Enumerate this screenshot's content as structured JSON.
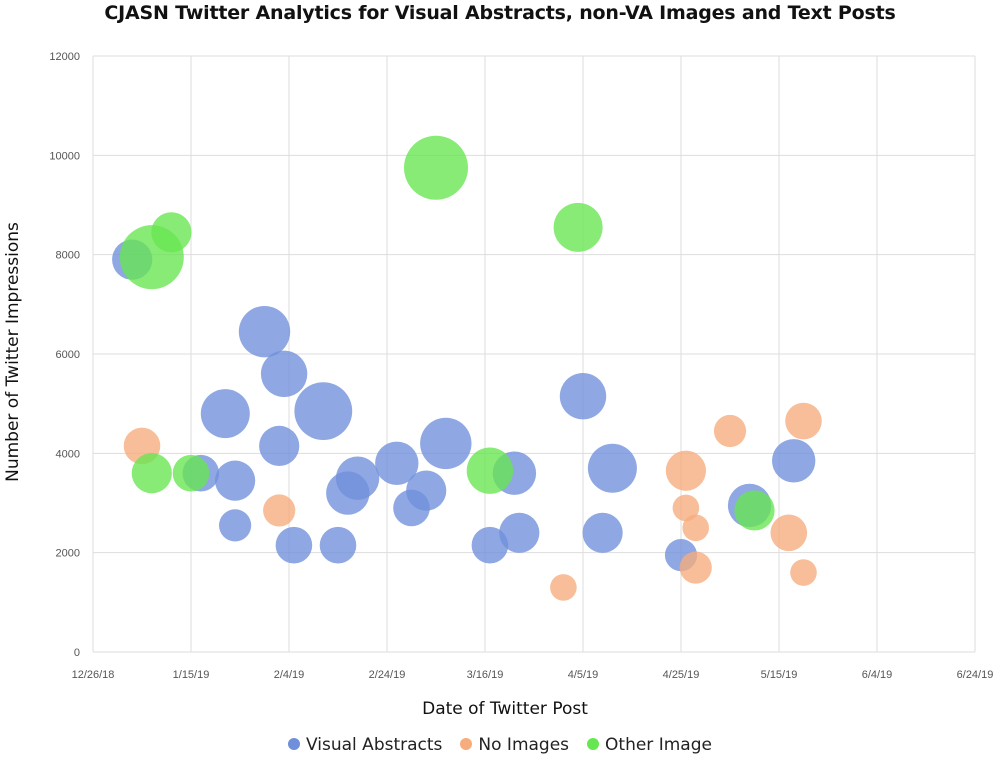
{
  "chart_data": {
    "type": "scatter",
    "title": "CJASN Twitter Analytics for Visual Abstracts, non-VA Images and Text Posts",
    "xlabel": "Date of Twitter Post",
    "ylabel": "Number of Twitter Impressions",
    "x_ticks": [
      "12/26/18",
      "1/15/19",
      "2/4/19",
      "2/24/19",
      "3/16/19",
      "4/5/19",
      "4/25/19",
      "5/15/19",
      "6/4/19",
      "6/24/19"
    ],
    "y_ticks": [
      "0",
      "2000",
      "4000",
      "6000",
      "8000",
      "10000",
      "12000"
    ],
    "xlim": [
      "2018-12-26",
      "2019-06-24"
    ],
    "ylim": [
      0,
      12000
    ],
    "grid": true,
    "legend_position": "bottom",
    "series": [
      {
        "name": "Visual Abstracts",
        "color": "#6f8fdb",
        "points": [
          {
            "x": "2019-01-03",
            "y": 7900,
            "size": 4
          },
          {
            "x": "2019-01-17",
            "y": 3600,
            "size": 3
          },
          {
            "x": "2019-01-22",
            "y": 4800,
            "size": 7
          },
          {
            "x": "2019-01-24",
            "y": 3450,
            "size": 4
          },
          {
            "x": "2019-01-24",
            "y": 2550,
            "size": 2
          },
          {
            "x": "2019-01-30",
            "y": 6450,
            "size": 8
          },
          {
            "x": "2019-02-02",
            "y": 4150,
            "size": 4
          },
          {
            "x": "2019-02-03",
            "y": 5600,
            "size": 6
          },
          {
            "x": "2019-02-05",
            "y": 2150,
            "size": 3
          },
          {
            "x": "2019-02-11",
            "y": 4850,
            "size": 9
          },
          {
            "x": "2019-02-14",
            "y": 2150,
            "size": 3
          },
          {
            "x": "2019-02-16",
            "y": 3200,
            "size": 5
          },
          {
            "x": "2019-02-18",
            "y": 3500,
            "size": 5
          },
          {
            "x": "2019-02-26",
            "y": 3800,
            "size": 5
          },
          {
            "x": "2019-03-01",
            "y": 2900,
            "size": 3
          },
          {
            "x": "2019-03-04",
            "y": 3250,
            "size": 4
          },
          {
            "x": "2019-03-08",
            "y": 4200,
            "size": 8
          },
          {
            "x": "2019-03-17",
            "y": 2150,
            "size": 3
          },
          {
            "x": "2019-03-22",
            "y": 3600,
            "size": 5
          },
          {
            "x": "2019-03-23",
            "y": 2400,
            "size": 4
          },
          {
            "x": "2019-04-05",
            "y": 5150,
            "size": 6
          },
          {
            "x": "2019-04-09",
            "y": 2400,
            "size": 4
          },
          {
            "x": "2019-04-11",
            "y": 3700,
            "size": 7
          },
          {
            "x": "2019-04-25",
            "y": 1950,
            "size": 2
          },
          {
            "x": "2019-05-09",
            "y": 2950,
            "size": 5
          },
          {
            "x": "2019-05-18",
            "y": 3850,
            "size": 5
          }
        ]
      },
      {
        "name": "No Images",
        "color": "#f6ac7c",
        "points": [
          {
            "x": "2019-01-05",
            "y": 4150,
            "size": 3
          },
          {
            "x": "2019-02-02",
            "y": 2850,
            "size": 2
          },
          {
            "x": "2019-04-01",
            "y": 1300,
            "size": 1
          },
          {
            "x": "2019-04-26",
            "y": 3650,
            "size": 4
          },
          {
            "x": "2019-04-26",
            "y": 2900,
            "size": 1
          },
          {
            "x": "2019-04-28",
            "y": 2500,
            "size": 1
          },
          {
            "x": "2019-04-28",
            "y": 1700,
            "size": 2
          },
          {
            "x": "2019-05-05",
            "y": 4450,
            "size": 2
          },
          {
            "x": "2019-05-17",
            "y": 2400,
            "size": 3
          },
          {
            "x": "2019-05-20",
            "y": 4650,
            "size": 3
          },
          {
            "x": "2019-05-20",
            "y": 1600,
            "size": 1
          }
        ]
      },
      {
        "name": "Other Image",
        "color": "#66e650",
        "points": [
          {
            "x": "2019-01-07",
            "y": 7950,
            "size": 10
          },
          {
            "x": "2019-01-11",
            "y": 8450,
            "size": 4
          },
          {
            "x": "2019-01-07",
            "y": 3600,
            "size": 4
          },
          {
            "x": "2019-01-15",
            "y": 3600,
            "size": 3
          },
          {
            "x": "2019-03-06",
            "y": 9750,
            "size": 10
          },
          {
            "x": "2019-03-17",
            "y": 3650,
            "size": 6
          },
          {
            "x": "2019-04-04",
            "y": 8550,
            "size": 7
          },
          {
            "x": "2019-05-10",
            "y": 2850,
            "size": 4
          }
        ]
      }
    ]
  }
}
